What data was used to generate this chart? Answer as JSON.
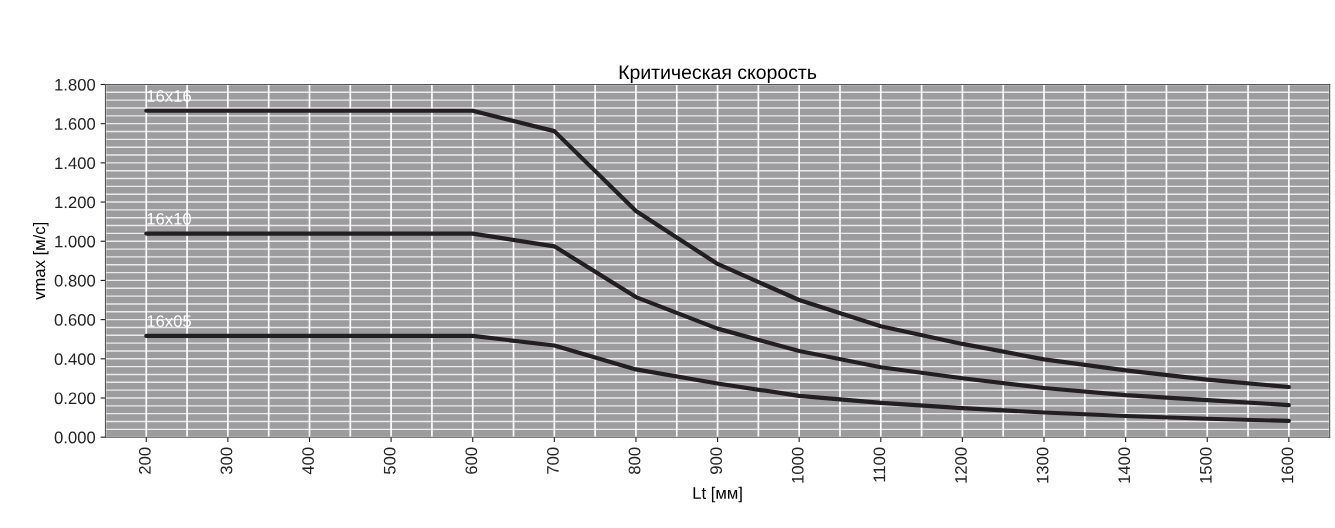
{
  "chart_data": {
    "type": "line",
    "title": "Критическая скорость",
    "xlabel": "Lt [мм]",
    "ylabel": "vmax [м/с]",
    "x": [
      200,
      300,
      400,
      500,
      600,
      700,
      800,
      900,
      1000,
      1100,
      1200,
      1300,
      1400,
      1500,
      1600
    ],
    "series": [
      {
        "name": "16x16",
        "color": "#231f20",
        "values": [
          1.666,
          1.666,
          1.666,
          1.666,
          1.666,
          1.562,
          1.154,
          0.884,
          0.7,
          0.566,
          0.476,
          0.397,
          0.341,
          0.294,
          0.256
        ]
      },
      {
        "name": "16x10",
        "color": "#231f20",
        "values": [
          1.039,
          1.039,
          1.039,
          1.039,
          1.039,
          0.974,
          0.715,
          0.554,
          0.44,
          0.357,
          0.301,
          0.251,
          0.215,
          0.189,
          0.164
        ]
      },
      {
        "name": "16x05",
        "color": "#231f20",
        "values": [
          0.517,
          0.517,
          0.517,
          0.517,
          0.517,
          0.468,
          0.346,
          0.274,
          0.211,
          0.175,
          0.148,
          0.126,
          0.108,
          0.094,
          0.083
        ]
      }
    ],
    "xlim": [
      150,
      1650
    ],
    "xticks": [
      200,
      300,
      400,
      500,
      600,
      700,
      800,
      900,
      1000,
      1100,
      1200,
      1300,
      1400,
      1500,
      1600
    ],
    "ylim": [
      0,
      1.8
    ],
    "yticks": [
      {
        "value": 0,
        "label": "0.000"
      },
      {
        "value": 0.2,
        "label": "0.200"
      },
      {
        "value": 0.4,
        "label": "0.400"
      },
      {
        "value": 0.6,
        "label": "0.600"
      },
      {
        "value": 0.8,
        "label": "0.800"
      },
      {
        "value": 1.0,
        "label": "1.000"
      },
      {
        "value": 1.2,
        "label": "1.200"
      },
      {
        "value": 1.4,
        "label": "1.400"
      },
      {
        "value": 1.6,
        "label": "1.600"
      },
      {
        "value": 1.8,
        "label": "1.800"
      }
    ],
    "grid": true,
    "legend": false,
    "marker": "none",
    "line_style": "solid"
  }
}
